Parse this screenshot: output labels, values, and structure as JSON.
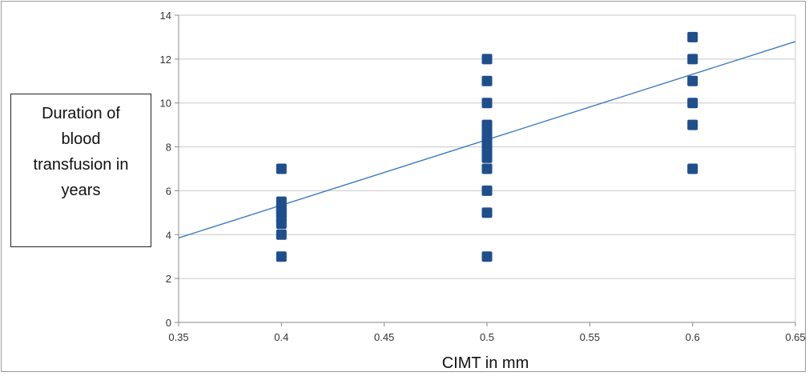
{
  "chart_data": {
    "type": "scatter",
    "xlabel": "CIMT in mm",
    "ylabel": "Duration of blood transfusion in years",
    "xlim": [
      0.35,
      0.65
    ],
    "ylim": [
      0,
      14
    ],
    "xticks": [
      "0.35",
      "0.4",
      "0.45",
      "0.5",
      "0.55",
      "0.6",
      "0.65"
    ],
    "yticks": [
      "0",
      "2",
      "4",
      "6",
      "8",
      "10",
      "12",
      "14"
    ],
    "grid": "horizontal",
    "marker_color": "#1f4e8c",
    "trendline_color": "#3d7bbf",
    "points": [
      {
        "x": 0.4,
        "y": 7
      },
      {
        "x": 0.4,
        "y": 5.5
      },
      {
        "x": 0.4,
        "y": 5.2
      },
      {
        "x": 0.4,
        "y": 5
      },
      {
        "x": 0.4,
        "y": 4.8
      },
      {
        "x": 0.4,
        "y": 4.5
      },
      {
        "x": 0.4,
        "y": 4
      },
      {
        "x": 0.4,
        "y": 3
      },
      {
        "x": 0.5,
        "y": 12
      },
      {
        "x": 0.5,
        "y": 11
      },
      {
        "x": 0.5,
        "y": 10
      },
      {
        "x": 0.5,
        "y": 9
      },
      {
        "x": 0.5,
        "y": 8.7
      },
      {
        "x": 0.5,
        "y": 8.4
      },
      {
        "x": 0.5,
        "y": 8.1
      },
      {
        "x": 0.5,
        "y": 7.8
      },
      {
        "x": 0.5,
        "y": 7.5
      },
      {
        "x": 0.5,
        "y": 7
      },
      {
        "x": 0.5,
        "y": 6
      },
      {
        "x": 0.5,
        "y": 5
      },
      {
        "x": 0.5,
        "y": 3
      },
      {
        "x": 0.6,
        "y": 13
      },
      {
        "x": 0.6,
        "y": 12
      },
      {
        "x": 0.6,
        "y": 11
      },
      {
        "x": 0.6,
        "y": 10
      },
      {
        "x": 0.6,
        "y": 9
      },
      {
        "x": 0.6,
        "y": 7
      }
    ],
    "trendline": {
      "x": [
        0.35,
        0.65
      ],
      "y": [
        3.85,
        12.8
      ]
    }
  }
}
